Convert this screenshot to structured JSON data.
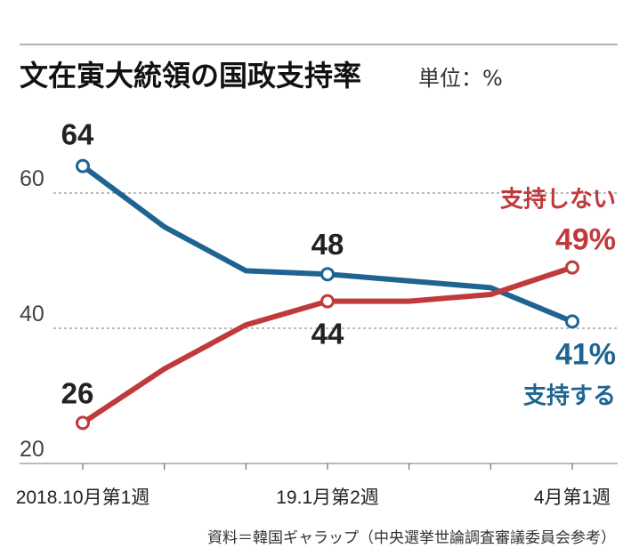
{
  "title": "文在寅大統領の国政支持率",
  "unit_label": "単位：%",
  "source": "資料＝韓国ギャラップ（中央選挙世論調査審議委員会参考）",
  "colors": {
    "support": "#1f6491",
    "nonsupport": "#c0393b"
  },
  "chart_data": {
    "type": "line",
    "x_tick_labels": [
      "2018.10月第1週",
      "19.1月第2週",
      "4月第1週"
    ],
    "ylim": [
      20,
      64
    ],
    "y_ticks": [
      "60",
      "40",
      "20"
    ],
    "grid": true,
    "series": [
      {
        "key": "support",
        "name": "支持する",
        "color": "#1f6491",
        "values": [
          64,
          55,
          48.5,
          48,
          47,
          46,
          41
        ]
      },
      {
        "key": "nonsupport",
        "name": "支持しない",
        "color": "#c0393b",
        "values": [
          26,
          34,
          40.5,
          44,
          44,
          45,
          49
        ]
      }
    ],
    "point_labels": {
      "support_start": "64",
      "support_mid": "48",
      "support_end": "41%",
      "nonsupport_start": "26",
      "nonsupport_mid": "44",
      "nonsupport_end": "49%"
    }
  }
}
